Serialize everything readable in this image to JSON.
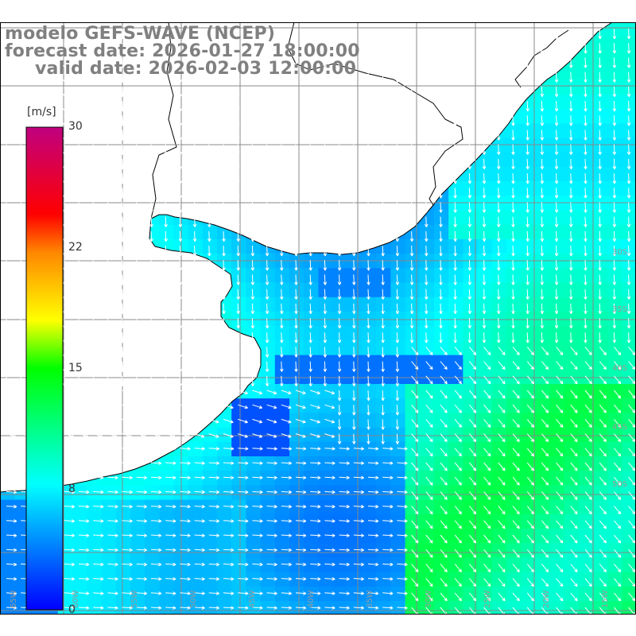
{
  "title": {
    "model": "modelo GEFS-WAVE (NCEP)",
    "forecast": "forecast date: 2026-01-27 18:00:00",
    "valid": "valid date: 2026-02-03 12:00:00"
  },
  "colorbar": {
    "units": "[m/s]",
    "ticks": [
      "0",
      "8",
      "15",
      "22",
      "30"
    ],
    "range": [
      0,
      30
    ],
    "stops": [
      "#0000ff",
      "#00ffff",
      "#00ff00",
      "#ffff00",
      "#ff8800",
      "#ff0000",
      "#c00080"
    ]
  },
  "map": {
    "lon_labels": [
      "65W",
      "60W",
      "55W",
      "50W",
      "45W",
      "40W",
      "35W",
      "30W",
      "25W",
      "20W",
      "15W"
    ],
    "lat_labels": [
      "30S",
      "35S",
      "40S",
      "45S",
      "50S"
    ],
    "colors": {
      "land": "#ffffff",
      "coast": "#000000",
      "grid": "#888888",
      "arrow": "#ffffff"
    }
  }
}
